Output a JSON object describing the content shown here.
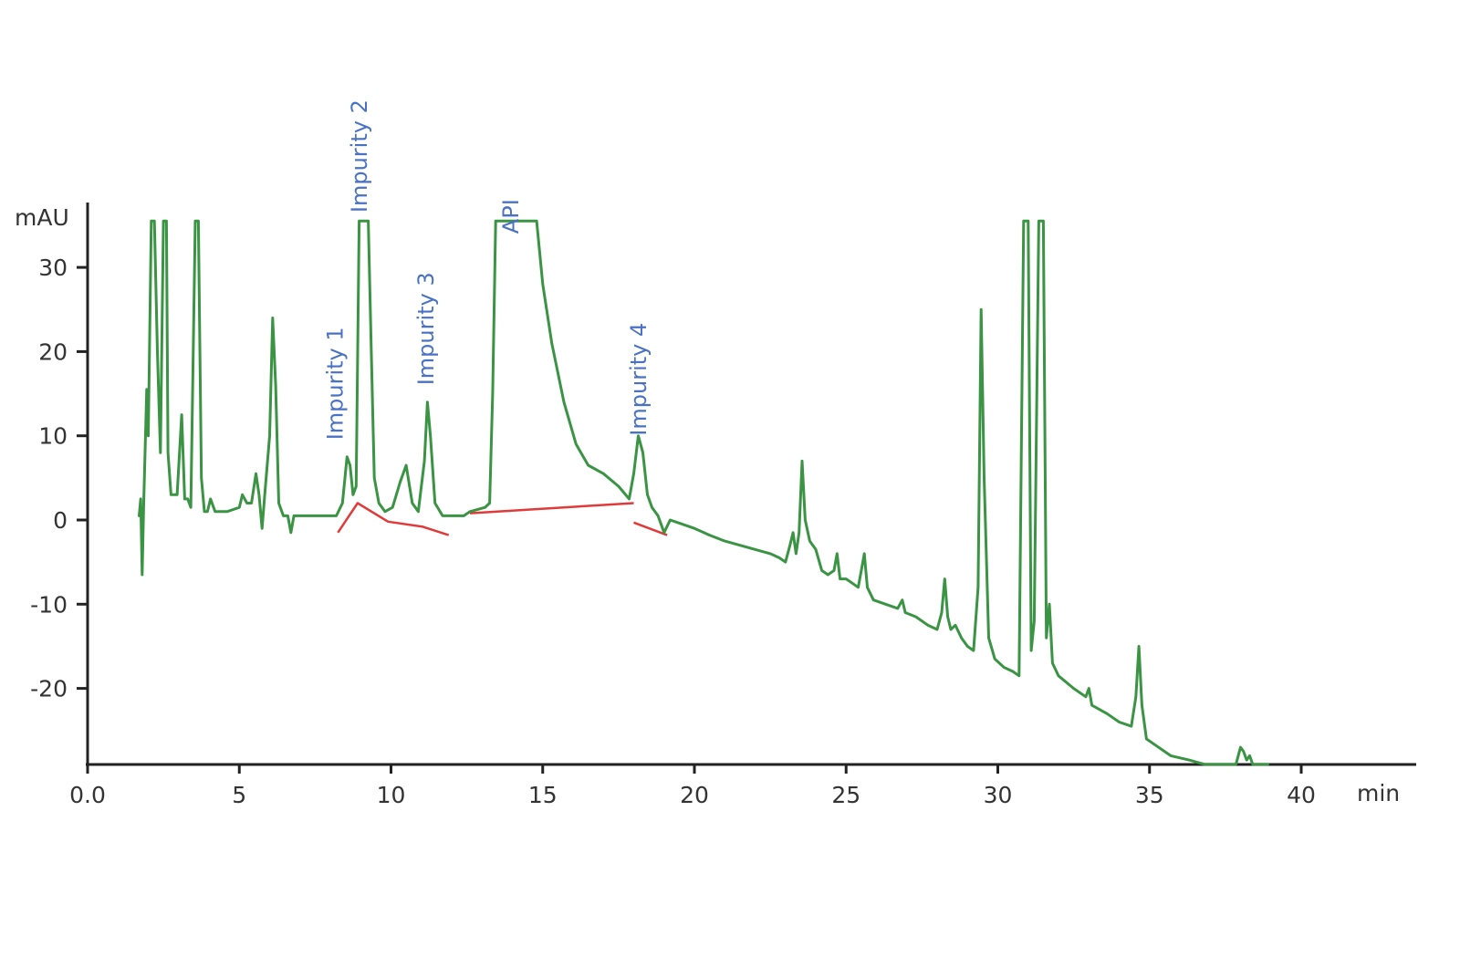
{
  "chart_data": {
    "type": "line",
    "xlabel": "min",
    "ylabel": "mAU",
    "xlim": [
      0,
      43.5
    ],
    "ylim": [
      -29,
      37
    ],
    "colors": {
      "trace": "#3a9444",
      "baseline": "#e03a3a",
      "labels": "#4a72c4",
      "axes": "#222222"
    },
    "x_ticks": [
      {
        "value": 0,
        "label": "0.0"
      },
      {
        "value": 5,
        "label": "5"
      },
      {
        "value": 10,
        "label": "10"
      },
      {
        "value": 15,
        "label": "15"
      },
      {
        "value": 20,
        "label": "20"
      },
      {
        "value": 25,
        "label": "25"
      },
      {
        "value": 30,
        "label": "30"
      },
      {
        "value": 35,
        "label": "35"
      },
      {
        "value": 40,
        "label": "40"
      }
    ],
    "y_ticks": [
      {
        "value": 30,
        "label": "30"
      },
      {
        "value": 20,
        "label": "20"
      },
      {
        "value": 10,
        "label": "10"
      },
      {
        "value": 0,
        "label": "0"
      },
      {
        "value": -10,
        "label": "-10"
      },
      {
        "value": -20,
        "label": "-20"
      }
    ],
    "annotations": [
      {
        "text": "Impurity 1",
        "x": 8.4,
        "y": 9.5
      },
      {
        "text": "Impurity 2",
        "x": 9.2,
        "y": 36.5
      },
      {
        "text": "Impurity 3",
        "x": 11.4,
        "y": 16
      },
      {
        "text": "API",
        "x": 14.2,
        "y": 34
      },
      {
        "text": "Impurity 4",
        "x": 18.4,
        "y": 10
      }
    ],
    "series": [
      {
        "points": [
          [
            1.7,
            0.5
          ],
          [
            1.75,
            2.5
          ],
          [
            1.8,
            -6.5
          ],
          [
            1.85,
            2.0
          ],
          [
            1.95,
            15.5
          ],
          [
            2.0,
            10.0
          ],
          [
            2.1,
            35.5
          ],
          [
            2.2,
            35.5
          ],
          [
            2.3,
            20.0
          ],
          [
            2.4,
            8.0
          ],
          [
            2.5,
            35.5
          ],
          [
            2.6,
            35.5
          ],
          [
            2.65,
            8.0
          ],
          [
            2.75,
            3.0
          ],
          [
            2.95,
            3.0
          ],
          [
            3.1,
            12.5
          ],
          [
            3.2,
            2.5
          ],
          [
            3.3,
            2.5
          ],
          [
            3.4,
            1.5
          ],
          [
            3.55,
            35.5
          ],
          [
            3.65,
            35.5
          ],
          [
            3.75,
            5.0
          ],
          [
            3.85,
            1.0
          ],
          [
            3.95,
            1.0
          ],
          [
            4.05,
            2.5
          ],
          [
            4.2,
            1.0
          ],
          [
            4.6,
            1.0
          ],
          [
            5.0,
            1.5
          ],
          [
            5.1,
            3.0
          ],
          [
            5.25,
            2.0
          ],
          [
            5.4,
            2.0
          ],
          [
            5.55,
            5.5
          ],
          [
            5.65,
            3.0
          ],
          [
            5.75,
            -1.0
          ],
          [
            5.85,
            3.5
          ],
          [
            6.0,
            10.0
          ],
          [
            6.1,
            24.0
          ],
          [
            6.2,
            16.0
          ],
          [
            6.3,
            2.0
          ],
          [
            6.45,
            0.5
          ],
          [
            6.6,
            0.5
          ],
          [
            6.7,
            -1.5
          ],
          [
            6.8,
            0.5
          ],
          [
            7.5,
            0.5
          ],
          [
            8.0,
            0.5
          ],
          [
            8.2,
            0.5
          ],
          [
            8.4,
            2.0
          ],
          [
            8.55,
            7.5
          ],
          [
            8.65,
            6.5
          ],
          [
            8.75,
            3.0
          ],
          [
            8.85,
            4.0
          ],
          [
            8.95,
            35.5
          ],
          [
            9.25,
            35.5
          ],
          [
            9.35,
            20.0
          ],
          [
            9.45,
            5.0
          ],
          [
            9.6,
            2.0
          ],
          [
            9.8,
            1.0
          ],
          [
            10.05,
            1.5
          ],
          [
            10.3,
            4.5
          ],
          [
            10.5,
            6.5
          ],
          [
            10.7,
            2.0
          ],
          [
            10.9,
            1.0
          ],
          [
            11.1,
            7.0
          ],
          [
            11.2,
            14.0
          ],
          [
            11.3,
            10.0
          ],
          [
            11.45,
            2.0
          ],
          [
            11.7,
            0.5
          ],
          [
            12.0,
            0.5
          ],
          [
            12.4,
            0.5
          ],
          [
            12.6,
            1.0
          ],
          [
            13.1,
            1.5
          ],
          [
            13.25,
            2.0
          ],
          [
            13.35,
            15.0
          ],
          [
            13.45,
            35.5
          ],
          [
            14.8,
            35.5
          ],
          [
            15.0,
            28.0
          ],
          [
            15.3,
            21.0
          ],
          [
            15.7,
            14.0
          ],
          [
            16.1,
            9.0
          ],
          [
            16.5,
            6.5
          ],
          [
            17.0,
            5.5
          ],
          [
            17.5,
            4.0
          ],
          [
            17.85,
            2.5
          ],
          [
            18.0,
            5.5
          ],
          [
            18.15,
            10.0
          ],
          [
            18.3,
            8.0
          ],
          [
            18.45,
            3.0
          ],
          [
            18.6,
            1.5
          ],
          [
            18.8,
            0.5
          ],
          [
            19.0,
            -1.5
          ],
          [
            19.2,
            0.0
          ],
          [
            19.6,
            -0.5
          ],
          [
            20.0,
            -1.0
          ],
          [
            20.5,
            -1.8
          ],
          [
            21.0,
            -2.5
          ],
          [
            21.5,
            -3.0
          ],
          [
            22.0,
            -3.5
          ],
          [
            22.5,
            -4.0
          ],
          [
            22.8,
            -4.5
          ],
          [
            23.0,
            -5.0
          ],
          [
            23.15,
            -3.0
          ],
          [
            23.25,
            -1.5
          ],
          [
            23.35,
            -4.0
          ],
          [
            23.45,
            -1.5
          ],
          [
            23.55,
            7.0
          ],
          [
            23.65,
            0.0
          ],
          [
            23.8,
            -2.5
          ],
          [
            24.0,
            -3.5
          ],
          [
            24.2,
            -6.0
          ],
          [
            24.4,
            -6.5
          ],
          [
            24.6,
            -6.0
          ],
          [
            24.7,
            -4.0
          ],
          [
            24.8,
            -7.0
          ],
          [
            25.0,
            -7.0
          ],
          [
            25.2,
            -7.5
          ],
          [
            25.4,
            -8.0
          ],
          [
            25.5,
            -6.0
          ],
          [
            25.6,
            -4.0
          ],
          [
            25.7,
            -8.0
          ],
          [
            25.9,
            -9.5
          ],
          [
            26.3,
            -10.0
          ],
          [
            26.7,
            -10.5
          ],
          [
            26.85,
            -9.5
          ],
          [
            26.95,
            -11.0
          ],
          [
            27.3,
            -11.5
          ],
          [
            27.7,
            -12.5
          ],
          [
            28.0,
            -13.0
          ],
          [
            28.15,
            -11.0
          ],
          [
            28.25,
            -7.0
          ],
          [
            28.35,
            -11.5
          ],
          [
            28.45,
            -13.0
          ],
          [
            28.6,
            -12.5
          ],
          [
            28.8,
            -14.0
          ],
          [
            29.0,
            -15.0
          ],
          [
            29.2,
            -15.5
          ],
          [
            29.35,
            -8.0
          ],
          [
            29.45,
            25.0
          ],
          [
            29.55,
            5.0
          ],
          [
            29.7,
            -14.0
          ],
          [
            29.9,
            -16.5
          ],
          [
            30.2,
            -17.5
          ],
          [
            30.5,
            -18.0
          ],
          [
            30.7,
            -18.5
          ],
          [
            30.85,
            35.5
          ],
          [
            31.0,
            35.5
          ],
          [
            31.1,
            -15.5
          ],
          [
            31.2,
            -12.0
          ],
          [
            31.35,
            35.5
          ],
          [
            31.5,
            35.5
          ],
          [
            31.6,
            -14.0
          ],
          [
            31.7,
            -10.0
          ],
          [
            31.8,
            -17.0
          ],
          [
            32.0,
            -18.5
          ],
          [
            32.5,
            -20.0
          ],
          [
            32.9,
            -21.0
          ],
          [
            33.0,
            -20.0
          ],
          [
            33.1,
            -22.0
          ],
          [
            33.6,
            -23.0
          ],
          [
            34.0,
            -24.0
          ],
          [
            34.4,
            -24.5
          ],
          [
            34.55,
            -21.0
          ],
          [
            34.65,
            -15.0
          ],
          [
            34.75,
            -22.0
          ],
          [
            34.9,
            -26.0
          ],
          [
            35.3,
            -27.0
          ],
          [
            35.7,
            -28.0
          ],
          [
            36.3,
            -28.5
          ],
          [
            36.8,
            -29.0
          ],
          [
            37.3,
            -29.0
          ],
          [
            37.85,
            -29.0
          ],
          [
            38.0,
            -27.0
          ],
          [
            38.1,
            -27.5
          ],
          [
            38.2,
            -28.5
          ],
          [
            38.3,
            -28.0
          ],
          [
            38.4,
            -29.0
          ],
          [
            38.9,
            -29.0
          ]
        ]
      }
    ],
    "integration_baselines": [
      [
        [
          8.25,
          -1.5
        ],
        [
          8.9,
          2.0
        ],
        [
          9.9,
          -0.2
        ],
        [
          11.05,
          -0.8
        ],
        [
          11.9,
          -1.8
        ]
      ],
      [
        [
          12.6,
          0.8
        ],
        [
          18.0,
          2.0
        ]
      ],
      [
        [
          18.0,
          -0.3
        ],
        [
          19.1,
          -1.8
        ]
      ]
    ]
  }
}
